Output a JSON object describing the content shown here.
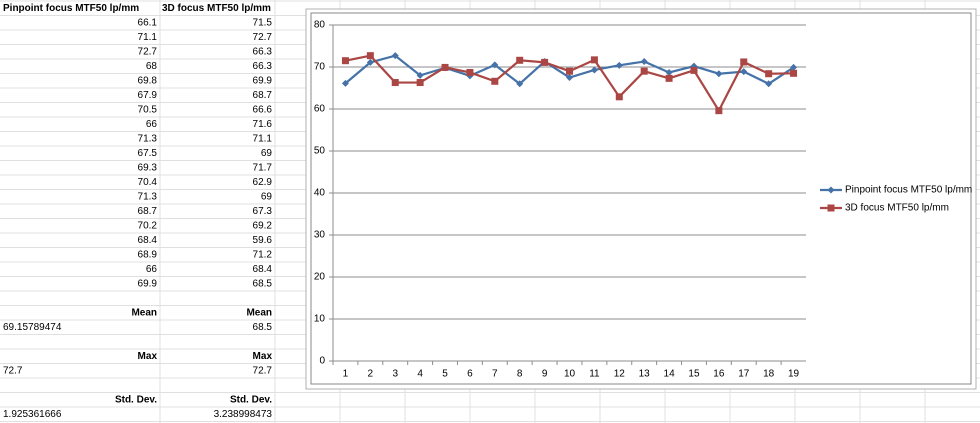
{
  "sheet": {
    "headers": [
      "Pinpoint focus MTF50 lp/mm",
      "3D focus MTF50 lp/mm"
    ],
    "rows": [
      [
        66.1,
        71.5
      ],
      [
        71.1,
        72.7
      ],
      [
        72.7,
        66.3
      ],
      [
        68,
        66.3
      ],
      [
        69.8,
        69.9
      ],
      [
        67.9,
        68.7
      ],
      [
        70.5,
        66.6
      ],
      [
        66,
        71.6
      ],
      [
        71.3,
        71.1
      ],
      [
        67.5,
        69
      ],
      [
        69.3,
        71.7
      ],
      [
        70.4,
        62.9
      ],
      [
        71.3,
        69
      ],
      [
        68.7,
        67.3
      ],
      [
        70.2,
        69.2
      ],
      [
        68.4,
        59.6
      ],
      [
        68.9,
        71.2
      ],
      [
        66,
        68.4
      ],
      [
        69.9,
        68.5
      ]
    ],
    "stats": [
      {
        "labels": [
          "Mean",
          "Mean"
        ],
        "values": [
          69.15789474,
          68.5
        ]
      },
      {
        "labels": [
          "Max",
          "Max"
        ],
        "values": [
          72.7,
          72.7
        ]
      },
      {
        "labels": [
          "Std. Dev.",
          "Std. Dev."
        ],
        "values": [
          1.925361666,
          3.238998473
        ]
      }
    ]
  },
  "chart_data": {
    "type": "line",
    "categories": [
      1,
      2,
      3,
      4,
      5,
      6,
      7,
      8,
      9,
      10,
      11,
      12,
      13,
      14,
      15,
      16,
      17,
      18,
      19
    ],
    "series": [
      {
        "name": "Pinpoint focus MTF50 lp/mm",
        "color": "#4572a7",
        "marker": "diamond",
        "values": [
          66.1,
          71.1,
          72.7,
          68,
          69.8,
          67.9,
          70.5,
          66,
          71.3,
          67.5,
          69.3,
          70.4,
          71.3,
          68.7,
          70.2,
          68.4,
          68.9,
          66,
          69.9
        ]
      },
      {
        "name": "3D focus MTF50 lp/mm",
        "color": "#aa4643",
        "marker": "square",
        "values": [
          71.5,
          72.7,
          66.3,
          66.3,
          69.9,
          68.7,
          66.6,
          71.6,
          71.1,
          69,
          71.7,
          62.9,
          69,
          67.3,
          69.2,
          59.6,
          71.2,
          68.4,
          68.5
        ]
      }
    ],
    "ylim": [
      0,
      80
    ],
    "yticks": [
      0,
      10,
      20,
      30,
      40,
      50,
      60,
      70,
      80
    ],
    "grid": true,
    "legend": "right"
  }
}
